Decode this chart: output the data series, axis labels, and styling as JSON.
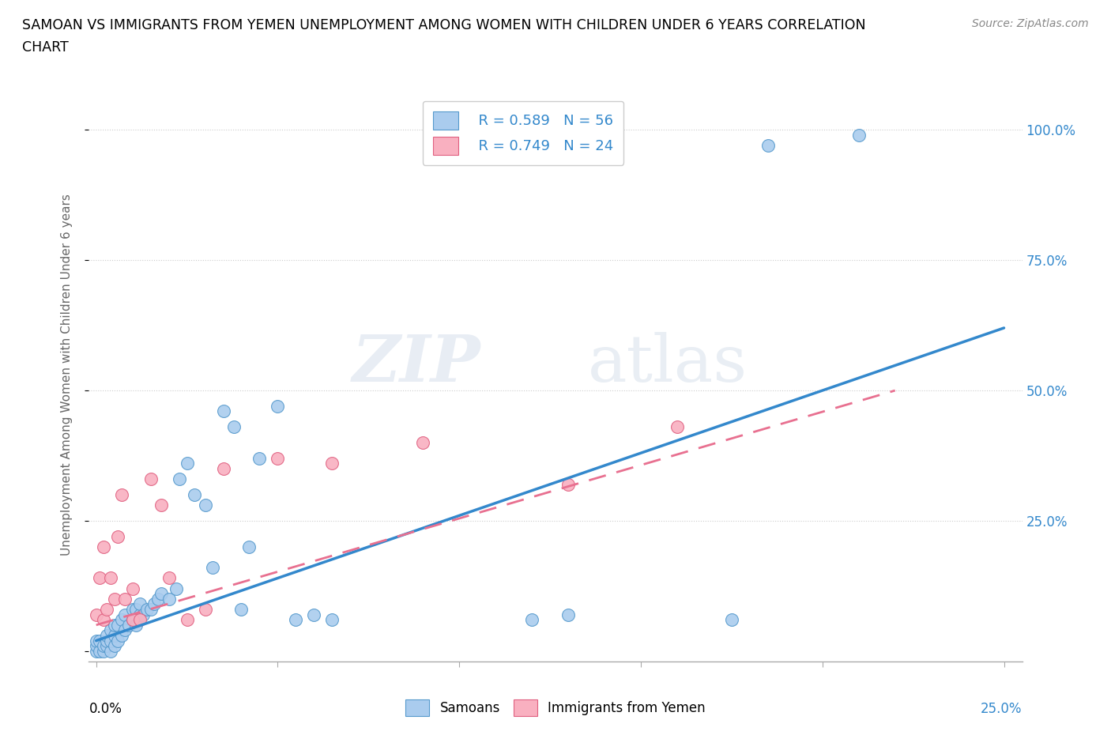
{
  "title_line1": "SAMOAN VS IMMIGRANTS FROM YEMEN UNEMPLOYMENT AMONG WOMEN WITH CHILDREN UNDER 6 YEARS CORRELATION",
  "title_line2": "CHART",
  "source": "Source: ZipAtlas.com",
  "ylabel": "Unemployment Among Women with Children Under 6 years",
  "yticks": [
    0.0,
    0.25,
    0.5,
    0.75,
    1.0
  ],
  "ytick_labels": [
    "",
    "25.0%",
    "50.0%",
    "75.0%",
    "100.0%"
  ],
  "xticks": [
    0.0,
    0.05,
    0.1,
    0.15,
    0.2,
    0.25
  ],
  "xlim": [
    -0.002,
    0.255
  ],
  "ylim": [
    -0.02,
    1.08
  ],
  "samoan_color": "#aaccee",
  "samoan_edge_color": "#5599cc",
  "yemen_color": "#f9b0c0",
  "yemen_edge_color": "#e06080",
  "line_samoan_color": "#3388cc",
  "line_yemen_color": "#e87090",
  "R_samoan": 0.589,
  "N_samoan": 56,
  "R_yemen": 0.749,
  "N_yemen": 24,
  "samoan_line_x": [
    0.0,
    0.25
  ],
  "samoan_line_y": [
    0.02,
    0.62
  ],
  "yemen_line_x": [
    0.0,
    0.22
  ],
  "yemen_line_y": [
    0.05,
    0.5
  ],
  "samoan_points_x": [
    0.0,
    0.0,
    0.0,
    0.001,
    0.001,
    0.002,
    0.002,
    0.003,
    0.003,
    0.003,
    0.004,
    0.004,
    0.004,
    0.005,
    0.005,
    0.005,
    0.006,
    0.006,
    0.007,
    0.007,
    0.008,
    0.008,
    0.009,
    0.01,
    0.01,
    0.011,
    0.011,
    0.012,
    0.012,
    0.013,
    0.014,
    0.015,
    0.016,
    0.017,
    0.018,
    0.02,
    0.022,
    0.023,
    0.025,
    0.027,
    0.03,
    0.032,
    0.035,
    0.038,
    0.04,
    0.042,
    0.045,
    0.05,
    0.055,
    0.06,
    0.065,
    0.12,
    0.13,
    0.175,
    0.185,
    0.21
  ],
  "samoan_points_y": [
    0.0,
    0.01,
    0.02,
    0.0,
    0.02,
    0.0,
    0.01,
    0.01,
    0.02,
    0.03,
    0.0,
    0.02,
    0.04,
    0.01,
    0.03,
    0.05,
    0.02,
    0.05,
    0.03,
    0.06,
    0.04,
    0.07,
    0.05,
    0.06,
    0.08,
    0.05,
    0.08,
    0.07,
    0.09,
    0.07,
    0.08,
    0.08,
    0.09,
    0.1,
    0.11,
    0.1,
    0.12,
    0.33,
    0.36,
    0.3,
    0.28,
    0.16,
    0.46,
    0.43,
    0.08,
    0.2,
    0.37,
    0.47,
    0.06,
    0.07,
    0.06,
    0.06,
    0.07,
    0.06,
    0.97,
    0.99
  ],
  "yemen_points_x": [
    0.0,
    0.001,
    0.002,
    0.002,
    0.003,
    0.004,
    0.005,
    0.006,
    0.007,
    0.008,
    0.01,
    0.01,
    0.012,
    0.015,
    0.018,
    0.02,
    0.025,
    0.03,
    0.035,
    0.05,
    0.065,
    0.09,
    0.13,
    0.16
  ],
  "yemen_points_y": [
    0.07,
    0.14,
    0.06,
    0.2,
    0.08,
    0.14,
    0.1,
    0.22,
    0.3,
    0.1,
    0.06,
    0.12,
    0.06,
    0.33,
    0.28,
    0.14,
    0.06,
    0.08,
    0.35,
    0.37,
    0.36,
    0.4,
    0.32,
    0.43
  ]
}
